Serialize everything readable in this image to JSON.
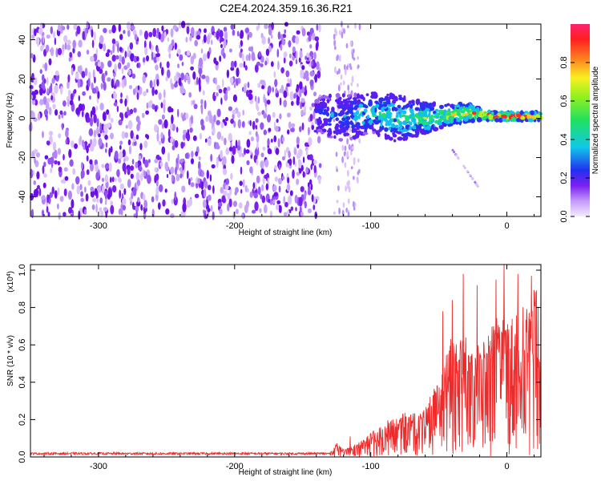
{
  "title": "C2E4.2024.359.16.36.R21",
  "colors": {
    "snr_line": "#ee2a2a",
    "noise_dark": "#7a1ef0",
    "noise_light": "#dcc4fb",
    "band_low": "#3a26f0",
    "band_mid": "#12c8e8",
    "band_high": "#ff2020"
  },
  "chart_data": [
    {
      "type": "heatmap",
      "name": "spectrogram",
      "xlabel": "Height of straight line (km)",
      "ylabel": "Frequency (Hz)",
      "xlim": [
        -350,
        25
      ],
      "ylim": [
        -50,
        48
      ],
      "xticks": [
        -300,
        -200,
        -100,
        0
      ],
      "xtick_labels": [
        "-300",
        "-200",
        "-100",
        "0"
      ],
      "yticks": [
        40,
        20,
        0,
        -20,
        -40
      ],
      "ytick_labels": [
        "40",
        "20",
        "0",
        "-20",
        "-40"
      ],
      "noise_region_x": [
        -350,
        -137
      ],
      "secondary_noise_x": [
        -127,
        -108
      ],
      "signal_band": {
        "x": [
          -140,
          -120,
          -100,
          -80,
          -60,
          -40,
          -30,
          -20,
          -10,
          0,
          10,
          20,
          25
        ],
        "center_hz": [
          2,
          0,
          3,
          0,
          0,
          2,
          3,
          2,
          1,
          1,
          1,
          1,
          1
        ],
        "halfwidth_hz": [
          10,
          12,
          10,
          12,
          8,
          5,
          5,
          3,
          2,
          2,
          2,
          2,
          2
        ],
        "amplitude": [
          0.25,
          0.3,
          0.4,
          0.45,
          0.5,
          0.6,
          0.65,
          0.7,
          0.85,
          0.95,
          0.9,
          0.85,
          0.8
        ]
      },
      "colorbar": {
        "label": "Normalized spectral amplitude",
        "range": [
          0,
          1
        ],
        "ticks": [
          0.0,
          0.2,
          0.4,
          0.6,
          0.8
        ],
        "tick_labels": [
          "0.0",
          "0.2",
          "0.4",
          "0.6",
          "0.8"
        ]
      }
    },
    {
      "type": "line",
      "name": "snr",
      "xlabel": "Height of straight line (km)",
      "ylabel": "SNR (10 * v/v)",
      "multiplier_label": "(x10",
      "multiplier_exp": "4",
      "multiplier_close": ")",
      "xlim": [
        -350,
        25
      ],
      "ylim": [
        0,
        1.03
      ],
      "xticks": [
        -300,
        -200,
        -100,
        0
      ],
      "xtick_labels": [
        "-300",
        "-200",
        "-100",
        "0"
      ],
      "yticks": [
        0.0,
        0.2,
        0.4,
        0.6,
        0.8,
        1.0
      ],
      "ytick_labels": [
        "0.0",
        "0.2",
        "0.4",
        "0.6",
        "0.8",
        "1.0"
      ],
      "envelope": {
        "x": [
          -350,
          -130,
          -125,
          -120,
          -110,
          -100,
          -90,
          -80,
          -70,
          -60,
          -55,
          -50,
          -45,
          -40,
          -35,
          -30,
          -25,
          -20,
          -15,
          -10,
          -5,
          0,
          5,
          10,
          15,
          20,
          25
        ],
        "y": [
          0.02,
          0.02,
          0.07,
          0.04,
          0.07,
          0.13,
          0.18,
          0.22,
          0.23,
          0.25,
          0.33,
          0.4,
          0.55,
          0.62,
          0.6,
          0.63,
          0.55,
          0.65,
          0.58,
          0.75,
          0.7,
          0.8,
          0.76,
          0.85,
          0.8,
          0.88,
          0.9
        ]
      },
      "peaks": [
        {
          "x": -115,
          "y": 0.11
        },
        {
          "x": -47,
          "y": 0.78
        },
        {
          "x": -40,
          "y": 0.84
        },
        {
          "x": -32,
          "y": 0.98
        },
        {
          "x": -22,
          "y": 0.92
        },
        {
          "x": -8,
          "y": 0.95
        },
        {
          "x": -2,
          "y": 1.03
        },
        {
          "x": 8,
          "y": 0.98
        },
        {
          "x": 18,
          "y": 0.97
        },
        {
          "x": 25,
          "y": 1.0
        }
      ]
    }
  ]
}
